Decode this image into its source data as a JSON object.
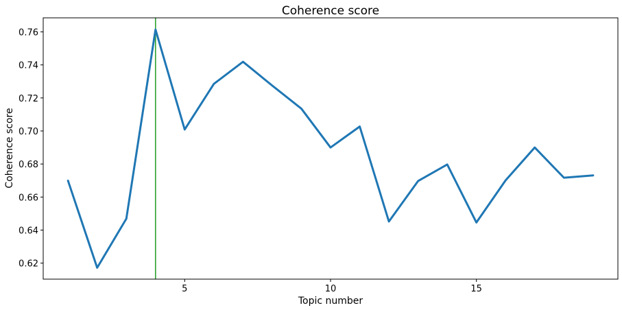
{
  "chart_data": {
    "type": "line",
    "title": "Coherence score",
    "xlabel": "Topic number",
    "ylabel": "Coherence score",
    "xlim": [
      0.15,
      19.85
    ],
    "ylim": [
      0.6103,
      0.7685
    ],
    "x_ticks": [
      5,
      10,
      15
    ],
    "y_ticks": [
      0.62,
      0.64,
      0.66,
      0.68,
      0.7,
      0.72,
      0.74,
      0.76
    ],
    "grid": false,
    "series": [
      {
        "color": "#1f77b4",
        "x": [
          1,
          2,
          3,
          4,
          5,
          6,
          7,
          8,
          9,
          10,
          11,
          12,
          13,
          14,
          15,
          16,
          17,
          18,
          19
        ],
        "y": [
          0.6699,
          0.6172,
          0.6469,
          0.7614,
          0.7009,
          0.7285,
          0.7419,
          0.7275,
          0.7135,
          0.69,
          0.7027,
          0.6452,
          0.6697,
          0.6797,
          0.6446,
          0.6701,
          0.69,
          0.6717,
          0.6731
        ]
      }
    ],
    "vline": {
      "x": 4,
      "color": "#2ca02c"
    }
  }
}
